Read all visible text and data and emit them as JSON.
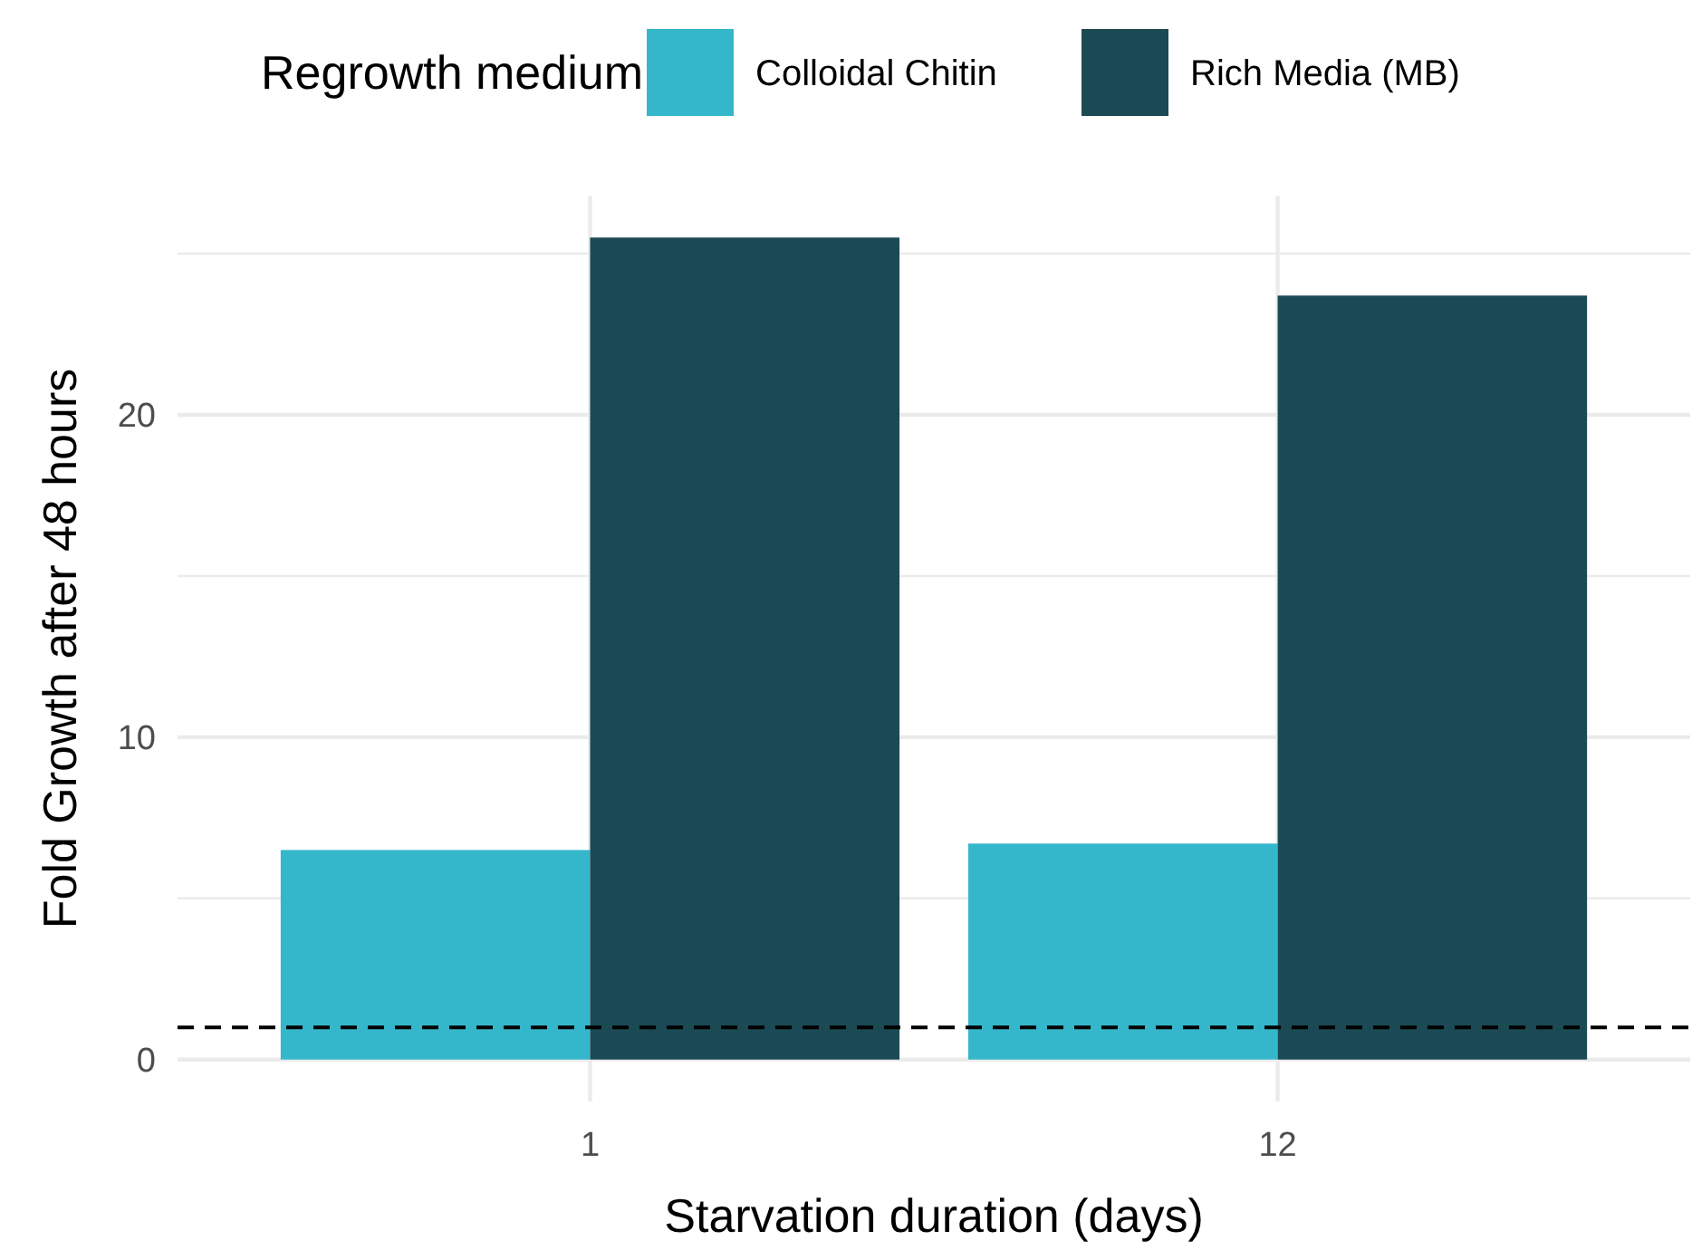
{
  "chart_data": {
    "type": "bar",
    "xlabel": "Starvation duration (days)",
    "ylabel": "Fold Growth after 48 hours",
    "legend_title": "Regrowth medium",
    "legend": "top",
    "grid": true,
    "categories": [
      "1",
      "12"
    ],
    "series": [
      {
        "name": "Colloidal Chitin",
        "color": "#35b7cb",
        "values": [
          6.5,
          6.7
        ]
      },
      {
        "name": "Rich Media (MB)",
        "color": "#1b4a54",
        "values": [
          25.5,
          23.7
        ]
      }
    ],
    "ylim": [
      -1.3,
      26.8
    ],
    "yticks": [
      0,
      {
        "value": 5,
        "label": null
      },
      10,
      {
        "value": 15,
        "label": null
      },
      20,
      {
        "value": 25,
        "label": null
      }
    ],
    "ref_lines": [
      {
        "axis": "y",
        "value": 1,
        "color": "#000000",
        "line_style": "dashed"
      }
    ]
  }
}
